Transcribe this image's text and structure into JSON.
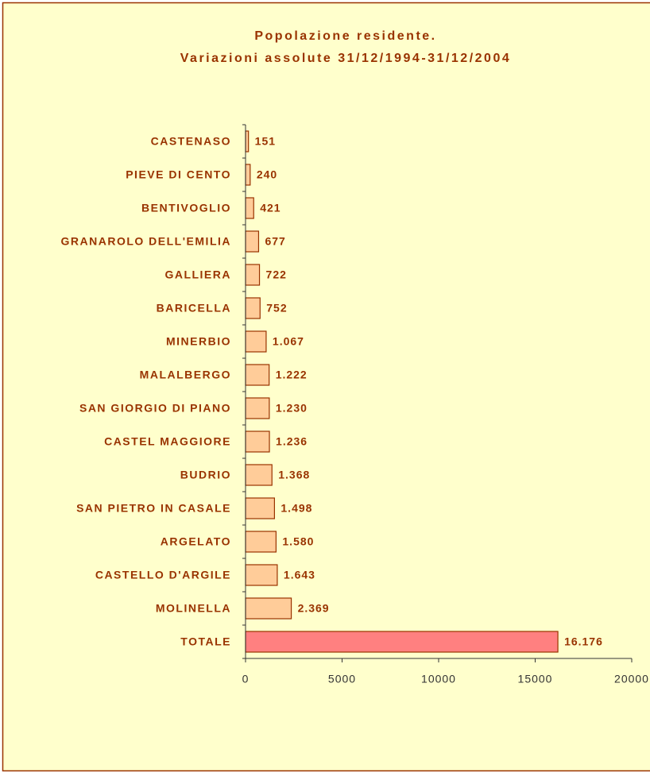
{
  "chart_data": {
    "type": "hbar",
    "title": "Popolazione residente.",
    "subtitle": "Variazioni assolute 31/12/1994-31/12/2004",
    "categories": [
      "CASTENASO",
      "PIEVE DI CENTO",
      "BENTIVOGLIO",
      "GRANAROLO DELL'EMILIA",
      "GALLIERA",
      "BARICELLA",
      "MINERBIO",
      "MALALBERGO",
      "SAN GIORGIO DI PIANO",
      "CASTEL MAGGIORE",
      "BUDRIO",
      "SAN PIETRO IN CASALE",
      "ARGELATO",
      "CASTELLO D'ARGILE",
      "MOLINELLA",
      "TOTALE"
    ],
    "values": [
      151,
      240,
      421,
      677,
      722,
      752,
      1067,
      1222,
      1230,
      1236,
      1368,
      1498,
      1580,
      1643,
      2369,
      16176
    ],
    "value_labels": [
      "151",
      "240",
      "421",
      "677",
      "722",
      "752",
      "1.067",
      "1.222",
      "1.230",
      "1.236",
      "1.368",
      "1.498",
      "1.580",
      "1.643",
      "2.369",
      "16.176"
    ],
    "colors": [
      "#ffcc99",
      "#ffcc99",
      "#ffcc99",
      "#ffcc99",
      "#ffcc99",
      "#ffcc99",
      "#ffcc99",
      "#ffcc99",
      "#ffcc99",
      "#ffcc99",
      "#ffcc99",
      "#ffcc99",
      "#ffcc99",
      "#ffcc99",
      "#ffcc99",
      "#ff8080"
    ],
    "xlim": [
      0,
      20000
    ],
    "xticks": [
      0,
      5000,
      10000,
      15000,
      20000
    ]
  }
}
